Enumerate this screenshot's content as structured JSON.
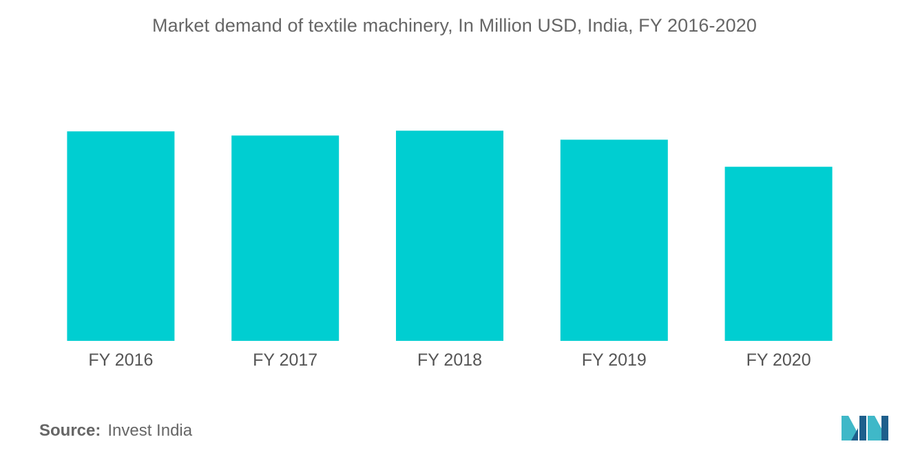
{
  "chart_data": {
    "type": "bar",
    "title": "Market demand of textile machinery, In Million USD, India, FY 2016-2020",
    "categories": [
      "FY 2016",
      "FY 2017",
      "FY 2018",
      "FY 2019",
      "FY 2020"
    ],
    "series": [
      {
        "values": [
          302,
          296,
          303,
          290,
          251
        ]
      }
    ],
    "xlabel": "",
    "ylabel": "",
    "ylim": [
      0,
      320
    ],
    "grid": false,
    "legend": "none",
    "bar_color": "#00CED1"
  },
  "source": {
    "label": "Source:",
    "text": "Invest India"
  },
  "logo": {
    "icon": "mordor-intelligence-logo-icon",
    "colors": [
      "#1E5F8C",
      "#3FB8C8"
    ]
  }
}
